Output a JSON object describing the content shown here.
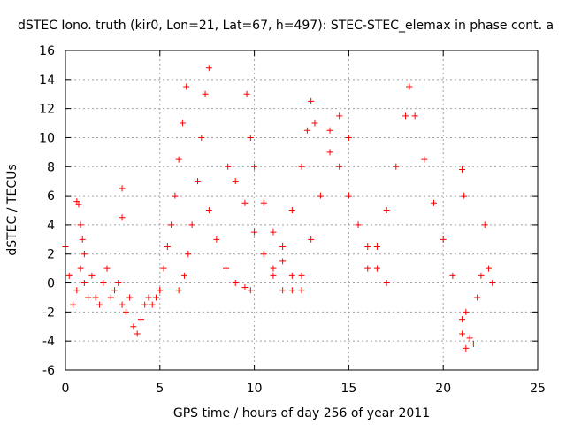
{
  "chart_data": {
    "type": "scatter",
    "title": "dSTEC Iono. truth (kir0, Lon=21, Lat=67, h=497): STEC-STEC_elemax in phase cont. a",
    "xlabel": "GPS time / hours of day 256 of year 2011",
    "ylabel": "dSTEC  / TECUs",
    "xlim": [
      0,
      25
    ],
    "ylim": [
      -6,
      16
    ],
    "xticks": [
      0,
      5,
      10,
      15,
      20,
      25
    ],
    "yticks": [
      -6,
      -4,
      -2,
      0,
      2,
      4,
      6,
      8,
      10,
      12,
      14,
      16
    ],
    "grid": true,
    "marker": "+",
    "color": "#ff0000",
    "series": [
      {
        "x": [
          0.0,
          0.2,
          0.4,
          0.6,
          0.8,
          1.0,
          1.2,
          1.4,
          1.6,
          1.8,
          2.0,
          2.2,
          2.4,
          2.6,
          2.8,
          3.0,
          3.2,
          3.4,
          3.6,
          3.8,
          4.0,
          4.2,
          4.4,
          4.6,
          4.8,
          5.0
        ],
        "y": [
          2.5,
          0.5,
          -1.5,
          -0.5,
          1.0,
          0.0,
          -1.0,
          0.5,
          -1.0,
          -1.5,
          0.0,
          1.0,
          -1.0,
          -0.5,
          0.0,
          -1.5,
          -2.0,
          -1.0,
          -3.0,
          -3.5,
          -2.5,
          -1.5,
          -1.0,
          -1.5,
          -1.0,
          -0.5
        ]
      },
      {
        "x": [
          0.6,
          0.7,
          0.8,
          0.9,
          1.0
        ],
        "y": [
          5.6,
          5.4,
          4.0,
          3.0,
          2.0
        ]
      },
      {
        "x": [
          3.0
        ],
        "y": [
          6.5
        ]
      },
      {
        "x": [
          3.0
        ],
        "y": [
          4.5
        ]
      },
      {
        "x": [
          5.0,
          5.2,
          5.4,
          5.6,
          5.8,
          6.0,
          6.2,
          6.4
        ],
        "y": [
          -0.5,
          1.0,
          2.5,
          4.0,
          6.0,
          8.5,
          11.0,
          13.5
        ]
      },
      {
        "x": [
          6.0,
          6.3,
          6.5,
          6.7,
          7.0,
          7.2,
          7.4,
          7.6
        ],
        "y": [
          -0.5,
          0.5,
          2.0,
          4.0,
          7.0,
          10.0,
          13.0,
          14.8
        ]
      },
      {
        "x": [
          7.6,
          8.0,
          8.5,
          9.0,
          9.5,
          9.8
        ],
        "y": [
          5.0,
          3.0,
          1.0,
          0.0,
          -0.3,
          -0.5
        ]
      },
      {
        "x": [
          8.6,
          9.0,
          9.5,
          10.0,
          10.5,
          11.0,
          11.5
        ],
        "y": [
          8.0,
          7.0,
          5.5,
          3.5,
          2.0,
          0.5,
          -0.5
        ]
      },
      {
        "x": [
          9.6,
          9.8,
          10.0,
          10.5,
          11.0,
          11.5,
          12.0,
          12.5
        ],
        "y": [
          13.0,
          10.0,
          8.0,
          5.5,
          3.5,
          1.5,
          0.5,
          -0.5
        ]
      },
      {
        "x": [
          11.0,
          11.5,
          12.0,
          12.5,
          12.8,
          13.0,
          13.2
        ],
        "y": [
          1.0,
          2.5,
          5.0,
          8.0,
          10.5,
          12.5,
          11.0
        ]
      },
      {
        "x": [
          12.0,
          12.5,
          13.0,
          13.5,
          14.0,
          14.5,
          15.0
        ],
        "y": [
          -0.5,
          0.5,
          3.0,
          6.0,
          9.0,
          11.5,
          10.0
        ]
      },
      {
        "x": [
          14.0,
          14.5,
          15.0,
          15.5,
          16.0,
          16.5,
          17.0
        ],
        "y": [
          10.5,
          8.0,
          6.0,
          4.0,
          2.5,
          1.0,
          0.0
        ]
      },
      {
        "x": [
          16.0,
          16.5,
          17.0,
          17.5,
          18.0,
          18.2
        ],
        "y": [
          1.0,
          2.5,
          5.0,
          8.0,
          11.5,
          13.5
        ]
      },
      {
        "x": [
          18.2,
          18.5,
          19.0,
          19.5,
          20.0,
          20.5,
          21.0,
          21.2
        ],
        "y": [
          13.5,
          11.5,
          8.5,
          5.5,
          3.0,
          0.5,
          -2.5,
          -4.5
        ]
      },
      {
        "x": [
          21.0,
          21.2,
          21.4,
          21.6,
          21.8,
          22.0,
          22.2,
          22.4,
          22.6
        ],
        "y": [
          -3.5,
          -2.0,
          -3.8,
          -4.2,
          -1.0,
          0.5,
          4.0,
          1.0,
          0.0
        ]
      },
      {
        "x": [
          21.0,
          21.1
        ],
        "y": [
          7.8,
          6.0
        ]
      }
    ]
  }
}
